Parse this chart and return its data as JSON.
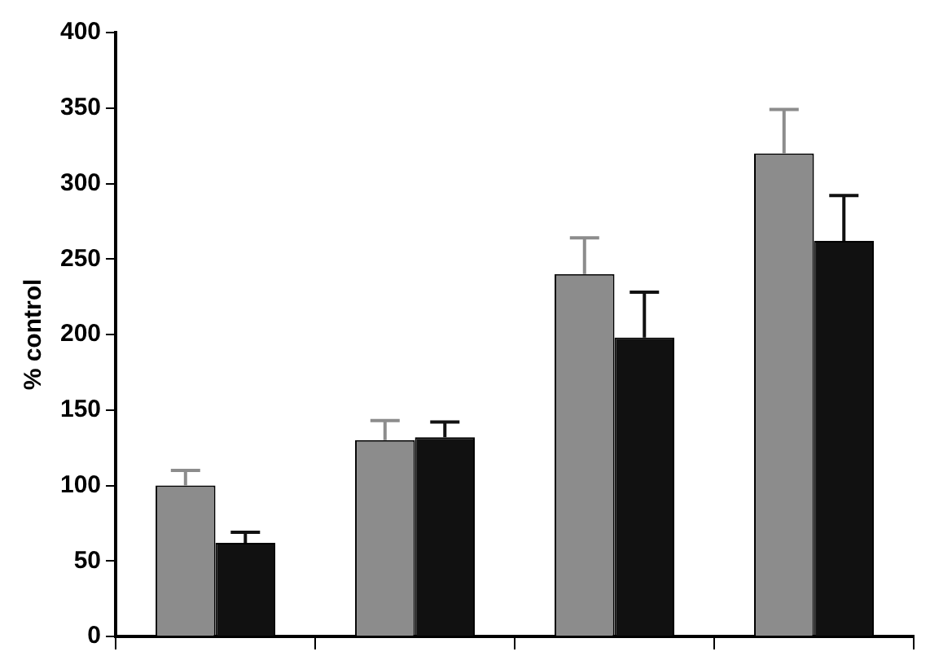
{
  "chart_data": {
    "type": "bar",
    "ylabel": "% control",
    "categories": [
      null,
      null,
      null,
      null
    ],
    "series": [
      {
        "color": "#8c8c8c",
        "values": [
          100,
          130,
          240,
          320
        ],
        "errors": [
          [
            100,
            110
          ],
          [
            130,
            143
          ],
          [
            240,
            264
          ],
          [
            320,
            349
          ]
        ]
      },
      {
        "color": "#111111",
        "values": [
          62,
          132,
          198,
          262
        ],
        "errors": [
          [
            62,
            69
          ],
          [
            132,
            142
          ],
          [
            198,
            228
          ],
          [
            262,
            292
          ]
        ]
      }
    ],
    "ylim": [
      0,
      400
    ],
    "yticks": [
      0,
      50,
      100,
      150,
      200,
      250,
      300,
      350,
      400
    ],
    "grid": false,
    "legend": false
  }
}
